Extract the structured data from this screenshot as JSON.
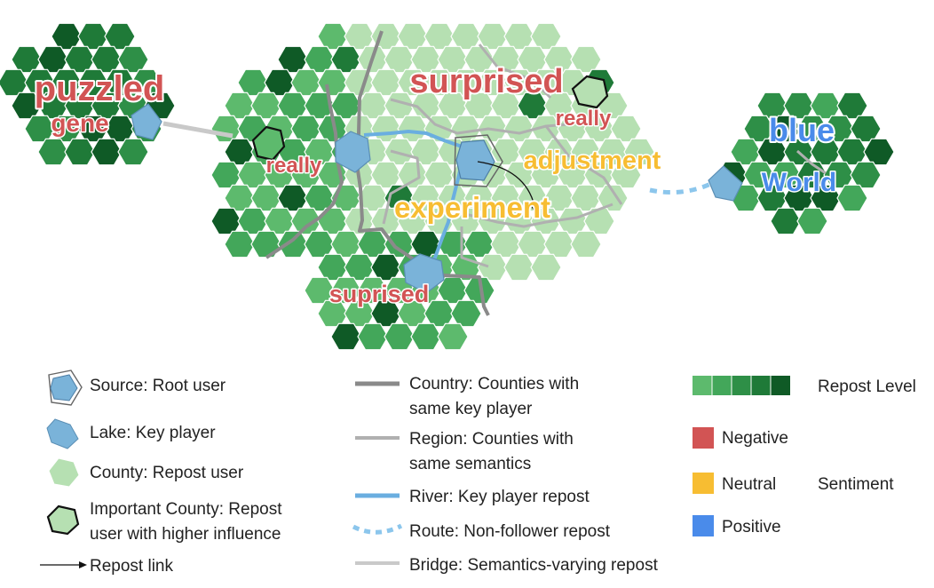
{
  "map": {
    "words": [
      {
        "text": "puzzled",
        "sentiment": "negative"
      },
      {
        "text": "gene",
        "sentiment": "negative"
      },
      {
        "text": "really",
        "sentiment": "negative"
      },
      {
        "text": "surprised",
        "sentiment": "negative"
      },
      {
        "text": "really",
        "sentiment": "negative"
      },
      {
        "text": "adjustment",
        "sentiment": "neutral"
      },
      {
        "text": "experiment",
        "sentiment": "neutral"
      },
      {
        "text": "suprised",
        "sentiment": "negative"
      },
      {
        "text": "blue",
        "sentiment": "positive"
      },
      {
        "text": "World",
        "sentiment": "positive"
      }
    ]
  },
  "legend": {
    "source": "Source: Root user",
    "lake": "Lake: Key player",
    "county": "County: Repost  user",
    "important_line1": "Important County: Repost",
    "important_line2": "user with higher influence",
    "repost_link": "Repost link",
    "country_line1": "Country: Counties with",
    "country_line2": "same key player",
    "region_line1": "Region: Counties with",
    "region_line2": "same semantics",
    "river": "River: Key player repost",
    "route": "Route: Non-follower repost",
    "bridge": "Bridge: Semantics-varying repost",
    "repost_level": "Repost Level",
    "negative": "Negative",
    "neutral": "Neutral",
    "positive": "Positive",
    "sentiment": "Sentiment"
  },
  "colors": {
    "repost_levels": [
      "#5dba6d",
      "#43a75a",
      "#2e8f47",
      "#1f7a38",
      "#0f5a26"
    ],
    "county_light": "#b6e0b2",
    "negative": "#d25454",
    "neutral": "#f7bd32",
    "positive": "#4a8bea",
    "lake": "#7ab3d9",
    "river": "#6aaee0",
    "country_border": "#8a8a8a",
    "region_border": "#b0b0b0",
    "bridge": "#c9c9c9"
  }
}
